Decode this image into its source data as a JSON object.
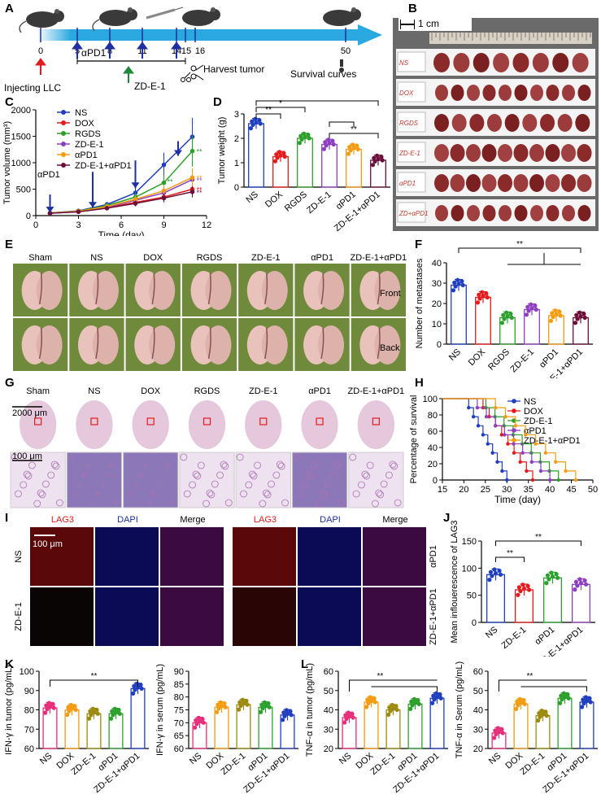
{
  "panel_letters": [
    "A",
    "B",
    "C",
    "D",
    "E",
    "F",
    "G",
    "H",
    "I",
    "J",
    "K",
    "L"
  ],
  "colors": {
    "NS": "#1f3fbf",
    "DOX": "#e41a1c",
    "RGDS": "#2ca02c",
    "ZDE1": "#8e3fc0",
    "aPD1": "#f39c12",
    "combo": "#6b0f3a",
    "K_NS": "#e62e7a",
    "K_DOX": "#f39c12",
    "K_ZD": "#9c8a10",
    "K_aPD1": "#2ca02c",
    "K_combo": "#1f3fbf",
    "L_NS": "#e62e7a",
    "L_DOX": "#f39c12",
    "L_ZD": "#9c8a10",
    "L_aPD1": "#2ca02c",
    "L_combo": "#1f3fbf"
  },
  "A": {
    "days": [
      "0",
      "5",
      "8",
      "11",
      "14",
      "15",
      "16",
      "50"
    ],
    "apd1": "αPD1",
    "harvest": "Harvest tumor",
    "zde1": "ZD-E-1",
    "injecting": "Injecting LLC",
    "survival": "Survival curves"
  },
  "B": {
    "scale": "1 cm",
    "row_labels": [
      "NS",
      "DOX",
      "RGDS",
      "ZD-E-1",
      "αPD1",
      "ZD+αPD1"
    ]
  },
  "chart_data": [
    {
      "id": "C",
      "type": "line",
      "xlabel": "Time (day)",
      "ylabel": "Tumor volume (mm³)",
      "xlim": [
        0,
        12
      ],
      "ylim": [
        0,
        2000
      ],
      "xticks": [
        "0",
        "3",
        "6",
        "9",
        "12"
      ],
      "yticks": [
        "0",
        "500",
        "1000",
        "1500",
        "2000"
      ],
      "annotation": "αPD1",
      "x": [
        1,
        3,
        5,
        7,
        9,
        11
      ],
      "series": [
        {
          "name": "NS",
          "values": [
            50,
            90,
            210,
            430,
            960,
            1490
          ]
        },
        {
          "name": "DOX",
          "values": [
            45,
            75,
            150,
            250,
            350,
            500
          ]
        },
        {
          "name": "RGDS",
          "values": [
            50,
            85,
            190,
            350,
            620,
            1220
          ]
        },
        {
          "name": "ZD-E-1",
          "values": [
            45,
            80,
            160,
            290,
            430,
            680
          ]
        },
        {
          "name": "αPD1",
          "values": [
            48,
            82,
            170,
            310,
            470,
            720
          ]
        },
        {
          "name": "ZD-E-1+αPD1",
          "values": [
            45,
            72,
            140,
            230,
            330,
            450
          ]
        }
      ],
      "legend": "top-left",
      "sig": [
        "**",
        "**",
        "**",
        "**",
        "**"
      ]
    },
    {
      "id": "D",
      "type": "bar",
      "ylabel": "Tumor weight (g)",
      "ylim": [
        0,
        3
      ],
      "yticks": [
        "0",
        "1",
        "2",
        "3"
      ],
      "categories": [
        "NS",
        "DOX",
        "RGDS",
        "ZD-E-1",
        "αPD1",
        "ZD-E-1+αPD1"
      ],
      "values": [
        2.6,
        1.25,
        2.0,
        1.75,
        1.55,
        1.1
      ],
      "sig": [
        "**",
        "*",
        "**",
        "**"
      ]
    },
    {
      "id": "F",
      "type": "bar",
      "ylabel": "Number of metastases",
      "ylim": [
        0,
        40
      ],
      "yticks": [
        "0",
        "10",
        "20",
        "30",
        "40"
      ],
      "categories": [
        "NS",
        "DOX",
        "RGDS",
        "ZD-E-1",
        "αPD1",
        "ZD-E-1+αPD1"
      ],
      "values": [
        29,
        23,
        13,
        17,
        14,
        13
      ],
      "sig": [
        "**"
      ]
    },
    {
      "id": "H",
      "type": "line",
      "xlabel": "Time (day)",
      "ylabel": "Percentage of survival",
      "xlim": [
        15,
        50
      ],
      "ylim": [
        0,
        100
      ],
      "xticks": [
        "15",
        "20",
        "25",
        "30",
        "35",
        "40",
        "45",
        "50"
      ],
      "yticks": [
        "0",
        "20",
        "40",
        "60",
        "80",
        "100"
      ],
      "series": [
        {
          "name": "NS",
          "end": 30
        },
        {
          "name": "DOX",
          "end": 36
        },
        {
          "name": "ZD-E-1",
          "end": 42
        },
        {
          "name": "αPD1",
          "end": 40
        },
        {
          "name": "ZD-E-1+αPD1",
          "end": 46
        }
      ],
      "legend": "top-right"
    },
    {
      "id": "J",
      "type": "bar",
      "ylabel": "Mean inflouerescence of LAG3",
      "ylim": [
        0,
        150
      ],
      "yticks": [
        "0",
        "50",
        "100",
        "150"
      ],
      "categories": [
        "NS",
        "ZD-E-1",
        "αPD1",
        "ZD-E-1+αPD1"
      ],
      "values": [
        88,
        60,
        82,
        70
      ],
      "sig": [
        "**",
        "**"
      ]
    },
    {
      "id": "K1",
      "type": "bar",
      "ylabel": "IFN-γ in tumor (pg/mL)",
      "ylim": [
        60,
        100
      ],
      "yticks": [
        "60",
        "70",
        "80",
        "90",
        "100"
      ],
      "categories": [
        "NS",
        "DOX",
        "ZD-E-1",
        "αPD1",
        "ZD-E-1+αPD1"
      ],
      "values": [
        81,
        80,
        78,
        78,
        91
      ],
      "sig": [
        "**"
      ]
    },
    {
      "id": "K2",
      "type": "bar",
      "ylabel": "IFN-γ in serum (pg/mL)",
      "ylim": [
        60,
        90
      ],
      "yticks": [
        "60",
        "65",
        "70",
        "75",
        "80",
        "85",
        "90"
      ],
      "categories": [
        "NS",
        "DOX",
        "ZD-E-1",
        "αPD1",
        "ZD-E-1+αPD1"
      ],
      "values": [
        70,
        76,
        77,
        76,
        73
      ]
    },
    {
      "id": "L1",
      "type": "bar",
      "ylabel": "TNF-α in tumor (pg/mL)",
      "ylim": [
        20,
        60
      ],
      "yticks": [
        "20",
        "30",
        "40",
        "50",
        "60"
      ],
      "categories": [
        "NS",
        "DOX",
        "ZD-E-1",
        "αPD1",
        "ZD-E-1+αPD1"
      ],
      "values": [
        36,
        44,
        40,
        43,
        46
      ],
      "sig": [
        "**"
      ]
    },
    {
      "id": "L2",
      "type": "bar",
      "ylabel": "TNF-α in Serum (pg/mL)",
      "ylim": [
        20,
        60
      ],
      "yticks": [
        "20",
        "30",
        "40",
        "50",
        "60"
      ],
      "categories": [
        "NS",
        "DOX",
        "ZD-E-1",
        "αPD1",
        "ZD-E-1+αPD1"
      ],
      "values": [
        28,
        43,
        37,
        46,
        44
      ],
      "sig": [
        "**"
      ]
    }
  ],
  "E": {
    "columns": [
      "Sham",
      "NS",
      "DOX",
      "RGDS",
      "ZD-E-1",
      "αPD1",
      "ZD-E-1+αPD1"
    ],
    "rows": [
      "Front",
      "Back"
    ]
  },
  "G": {
    "columns": [
      "Sham",
      "NS",
      "DOX",
      "RGDS",
      "ZD-E-1",
      "αPD1",
      "ZD-E-1+αPD1"
    ],
    "scale_top": "2000 μm",
    "scale_bottom": "100 μm"
  },
  "I": {
    "headers": [
      "LAG3",
      "DAPI",
      "Merge",
      "LAG3",
      "DAPI",
      "Merge"
    ],
    "rows": [
      "NS",
      "ZD-E-1"
    ],
    "right_rows": [
      "αPD1",
      "ZD-E-1+αPD1"
    ],
    "scale": "100 μm"
  }
}
